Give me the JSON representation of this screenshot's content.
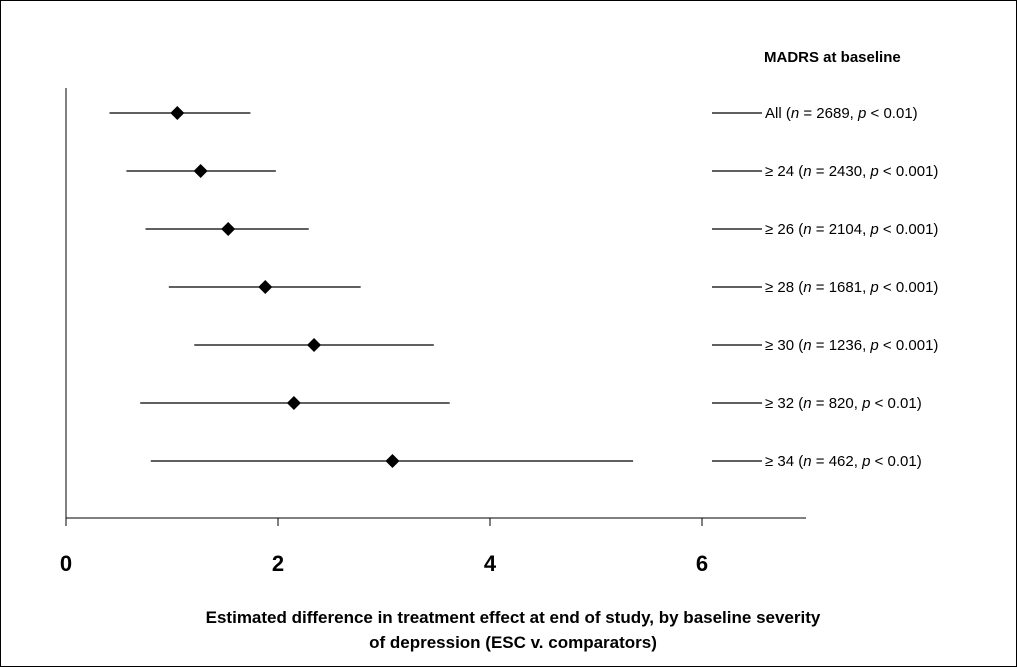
{
  "chart_data": {
    "type": "forest",
    "legend_title": "MADRS at baseline",
    "xlabel_lines": [
      "Estimated difference in treatment effect at end of study, by baseline severity",
      "of depression (ESC v. comparators)"
    ],
    "x_ticks": [
      "0",
      "2",
      "4",
      "6"
    ],
    "xlim": [
      0,
      7
    ],
    "rows": [
      {
        "label_prefix": "All (",
        "n": "2689",
        "p": "0.01",
        "estimate": 1.05,
        "ci": [
          0.41,
          1.74
        ]
      },
      {
        "label_prefix": "≥ 24 (",
        "n": "2430",
        "p": "0.001",
        "estimate": 1.27,
        "ci": [
          0.57,
          1.98
        ]
      },
      {
        "label_prefix": "≥ 26 (",
        "n": "2104",
        "p": "0.001",
        "estimate": 1.53,
        "ci": [
          0.75,
          2.29
        ]
      },
      {
        "label_prefix": "≥ 28 (",
        "n": "1681",
        "p": "0.001",
        "estimate": 1.88,
        "ci": [
          0.97,
          2.78
        ]
      },
      {
        "label_prefix": "≥ 30 (",
        "n": "1236",
        "p": "0.001",
        "estimate": 2.34,
        "ci": [
          1.21,
          3.47
        ]
      },
      {
        "label_prefix": "≥ 32 (",
        "n": "820",
        "p": "0.01",
        "estimate": 2.15,
        "ci": [
          0.7,
          3.62
        ]
      },
      {
        "label_prefix": "≥ 34 (",
        "n": "462",
        "p": "0.01",
        "estimate": 3.08,
        "ci": [
          0.8,
          5.35
        ]
      }
    ]
  }
}
